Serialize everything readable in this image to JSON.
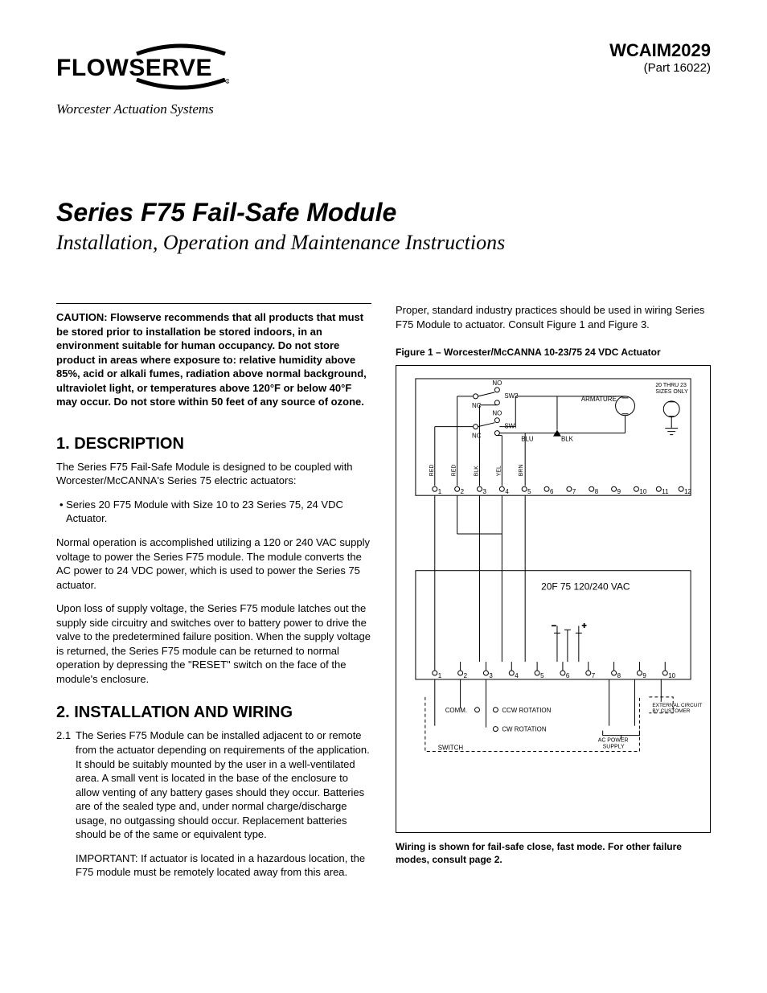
{
  "logo": {
    "brand": "FLOWSERVE",
    "subsidiary": "Worcester Actuation Systems"
  },
  "doc": {
    "code": "WCAIM2029",
    "part": "(Part 16022)"
  },
  "title": {
    "line1": "Series F75 Fail-Safe Module",
    "line2": "Installation, Operation and Maintenance Instructions"
  },
  "caution": "CAUTION: Flowserve recommends that all products that must be stored prior to installation be stored indoors, in an environment suitable for human occupancy. Do not store product in areas where exposure to: relative humidity above 85%, acid or alkali fumes, radiation above normal background, ultraviolet light, or temperatures above 120°F or below 40°F may occur. Do not store within 50 feet of any source of ozone.",
  "sec1": {
    "heading": "1. DESCRIPTION",
    "p1": "The Series F75 Fail-Safe Module is designed to be coupled with Worcester/McCANNA's Series 75 electric actuators:",
    "b1": "• Series 20 F75 Module with Size 10 to 23 Series 75, 24 VDC Actuator.",
    "p2": "Normal operation is accomplished utilizing a 120 or 240 VAC supply voltage to power the Series F75 module. The module converts the AC power to 24 VDC power, which is used to power the Series 75 actuator.",
    "p3": "Upon loss of supply voltage, the Series F75 module latches out the supply side circuitry and switches over to battery power to drive the valve to the predetermined failure position. When the supply voltage is returned, the Series F75 module can be returned to normal operation by depressing the \"RESET\" switch on the face of the module's enclosure."
  },
  "sec2": {
    "heading": "2. INSTALLATION AND WIRING",
    "n21_num": "2.1",
    "n21": "The Series F75 Module can be installed adjacent to or remote from the actuator depending on requirements of the application. It should be suitably mounted by the user in a well-ventilated area. A small vent is located in the base of the enclosure to allow venting of any battery gases should they occur. Batteries are of the sealed type and, under normal charge/discharge usage, no outgassing should occur. Replacement batteries should be of the same or equivalent type.",
    "imp": "IMPORTANT: If actuator is located in a hazardous location, the F75 module must be remotely located away from this area."
  },
  "rightcol": {
    "intro": "Proper, standard industry practices should be used in wiring Series F75 Module to actuator. Consult Figure 1 and Figure 3.",
    "figcap": "Figure 1 – Worcester/McCANNA 10-23/75 24 VDC Actuator",
    "fignote": "Wiring is shown for fail-safe close, fast mode. For other failure modes, consult page 2."
  },
  "fig": {
    "top": {
      "no1": "NO",
      "sw2": "SW2",
      "nc1": "NC",
      "no2": "NO",
      "sw1": "SWI",
      "nc2": "NC",
      "blu": "BLU",
      "blk": "BLK",
      "armature": "ARMATURE",
      "sizes": "20 THRU 23\nSIZES ONLY",
      "wirelabels": [
        "RED",
        "RED",
        "BLK",
        "YEL",
        "BRN"
      ],
      "terms": [
        "1",
        "2",
        "3",
        "4",
        "5",
        "6",
        "7",
        "8",
        "9",
        "10",
        "11",
        "12"
      ]
    },
    "mid": {
      "label": "20F 75  120/240 VAC"
    },
    "bot": {
      "terms": [
        "1",
        "2",
        "3",
        "4",
        "5",
        "6",
        "7",
        "8",
        "9",
        "10"
      ],
      "comm": "COMM.",
      "ccw": "CCW ROTATION",
      "cw": "CW ROTATION",
      "switch": "SWITCH",
      "acp1": "AC POWER",
      "acp2": "SUPPLY",
      "ext1": "EXTERNAL CIRCUIT",
      "ext2": "BY CUSTOMER"
    }
  }
}
